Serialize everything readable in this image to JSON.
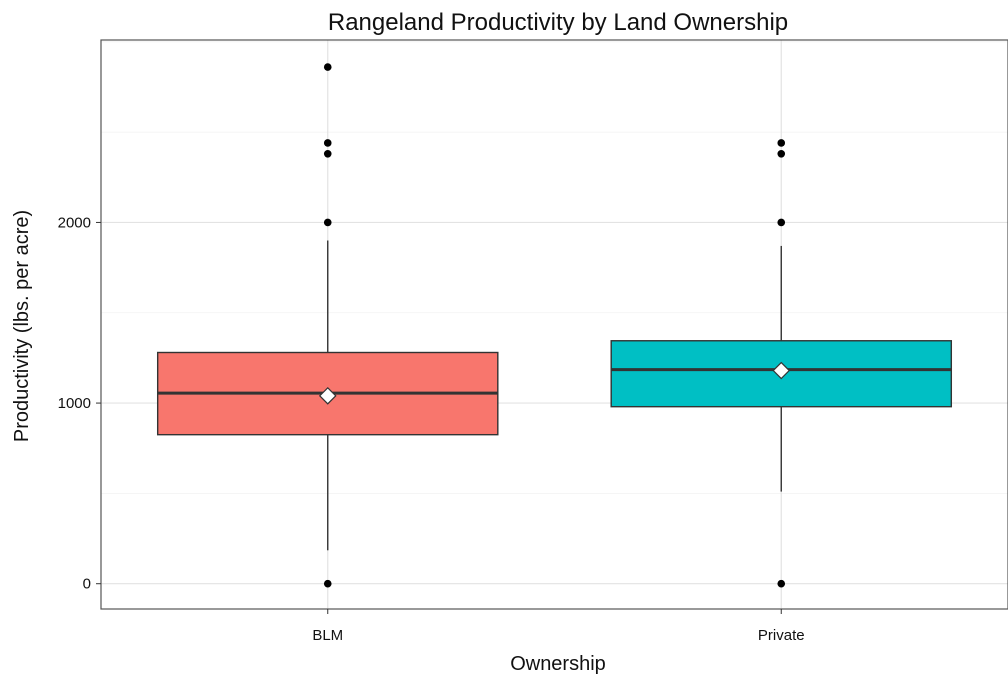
{
  "chart_data": {
    "type": "box",
    "title": "Rangeland Productivity by Land Ownership",
    "xlabel": "Ownership",
    "ylabel": "Productivity (lbs. per acre)",
    "ylim": [
      -140,
      3010
    ],
    "yticks": [
      0,
      1000,
      2000
    ],
    "ytick_labels": [
      "0",
      "1000",
      "2000"
    ],
    "grid": true,
    "categories": [
      "BLM",
      "Private"
    ],
    "colors": [
      "#f8766d",
      "#00bfc4"
    ],
    "boxes": [
      {
        "category": "BLM",
        "lower_whisker": 185,
        "q1": 825,
        "median": 1055,
        "q3": 1280,
        "upper_whisker": 1900,
        "mean": 1040,
        "outliers": [
          0,
          2000,
          2380,
          2440,
          2860
        ]
      },
      {
        "category": "Private",
        "lower_whisker": 510,
        "q1": 980,
        "median": 1185,
        "q3": 1345,
        "upper_whisker": 1870,
        "mean": 1180,
        "outliers": [
          0,
          2000,
          2380,
          2440
        ]
      }
    ]
  }
}
